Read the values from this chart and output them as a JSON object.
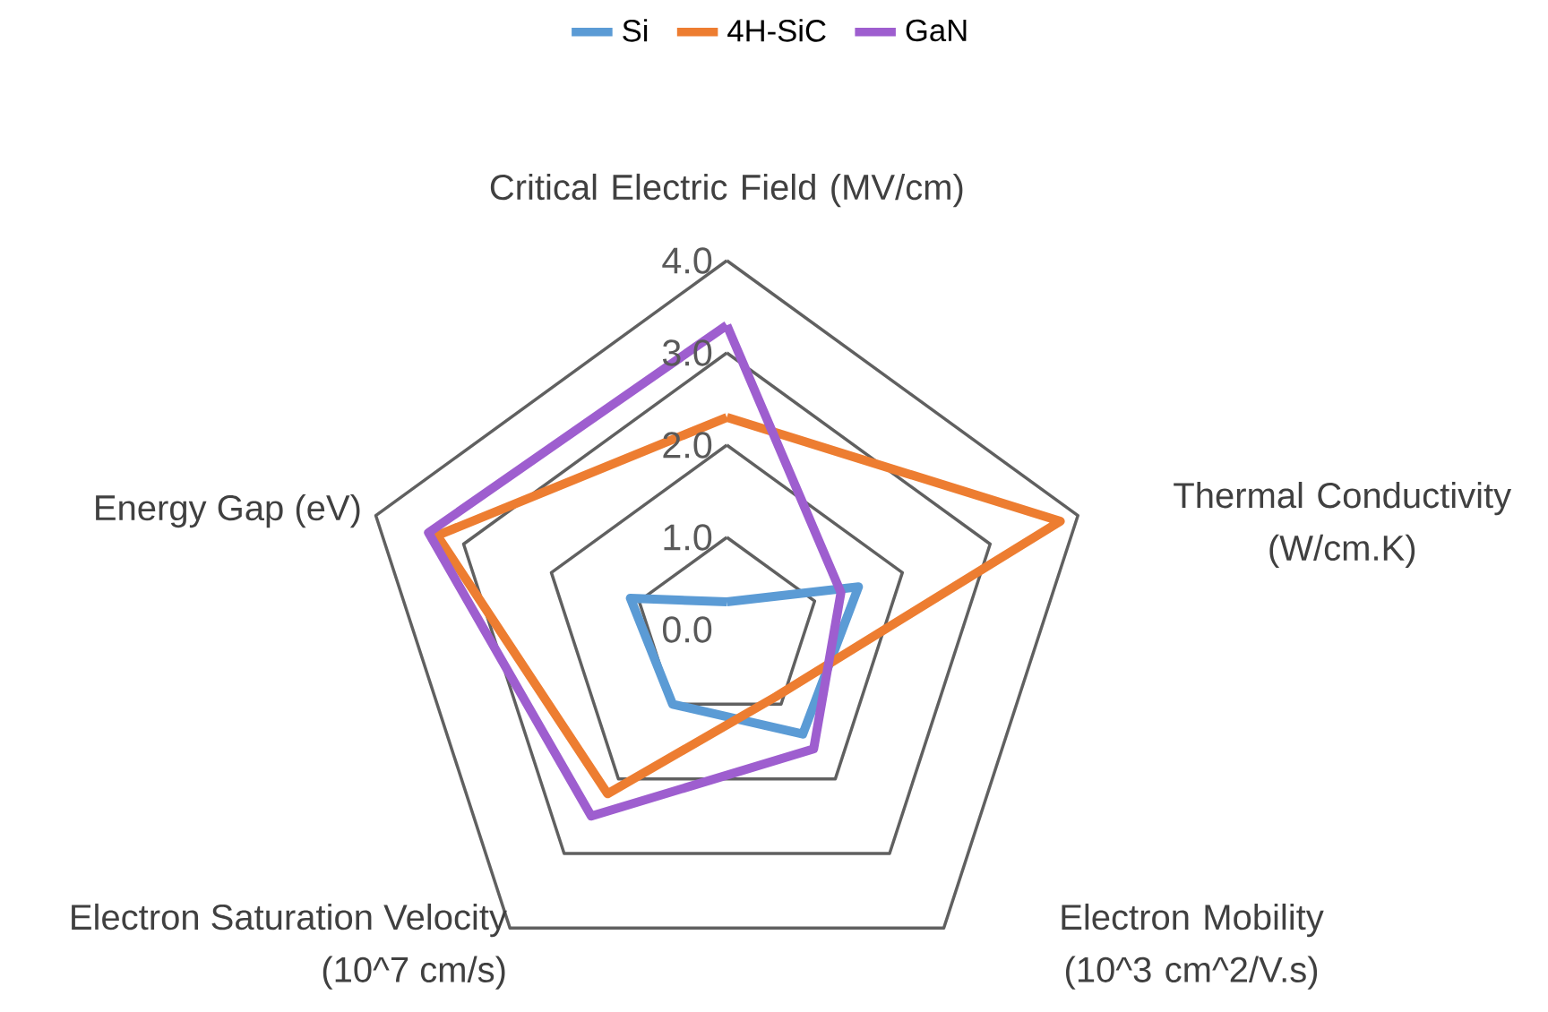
{
  "chart_data": {
    "type": "radar",
    "categories": [
      "Critical Electric Field (MV/cm)",
      "Thermal Conductivity (W/cm.K)",
      "Electron Mobility (10^3 cm^2/V.s)",
      "Electron Saturation Velocity (10^7 cm/s)",
      "Energy Gap (eV)"
    ],
    "series": [
      {
        "name": "Si",
        "color": "#5b9bd5",
        "values": [
          0.3,
          1.5,
          1.4,
          1.0,
          1.1
        ]
      },
      {
        "name": "4H-SiC",
        "color": "#ed7d31",
        "values": [
          2.3,
          3.8,
          0.9,
          2.2,
          3.3
        ]
      },
      {
        "name": "GaN",
        "color": "#9e5ecf",
        "values": [
          3.3,
          1.3,
          1.6,
          2.5,
          3.4
        ]
      }
    ],
    "ylim": [
      0,
      4
    ],
    "yticks": [
      {
        "value": 0,
        "label": "0.0"
      },
      {
        "value": 1,
        "label": "1.0"
      },
      {
        "value": 2,
        "label": "2.0"
      },
      {
        "value": 3,
        "label": "3.0"
      },
      {
        "value": 4,
        "label": "4.0"
      }
    ],
    "grid": true,
    "legend": "top"
  }
}
